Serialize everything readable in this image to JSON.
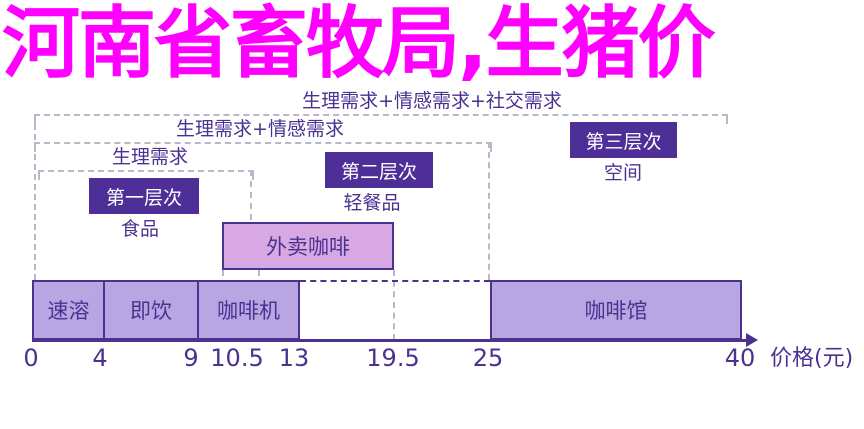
{
  "groups": {
    "outer": "生理需求+情感需求+社交需求",
    "middle": "生理需求+情感需求",
    "inner": "生理需求"
  },
  "levels": [
    {
      "label": "第一层次",
      "sub": "食品"
    },
    {
      "label": "第二层次",
      "sub": "轻餐品"
    },
    {
      "label": "第三层次",
      "sub": "空间"
    }
  ],
  "takeaway": "外卖咖啡",
  "bars": [
    "速溶",
    "即饮",
    "咖啡机",
    "咖啡馆"
  ],
  "axis": {
    "ticks": [
      "0",
      "4",
      "9",
      "10.5",
      "13",
      "19.5",
      "25",
      "40"
    ],
    "label": "价格(元)"
  },
  "overlay_title": "河南省畜牧局,生猪价",
  "colors": {
    "level_box": "#4e2f98",
    "bar_fill": "#b7a6e2",
    "takeaway_fill": "#d7a8e2",
    "overlay": "#ff00ff"
  }
}
